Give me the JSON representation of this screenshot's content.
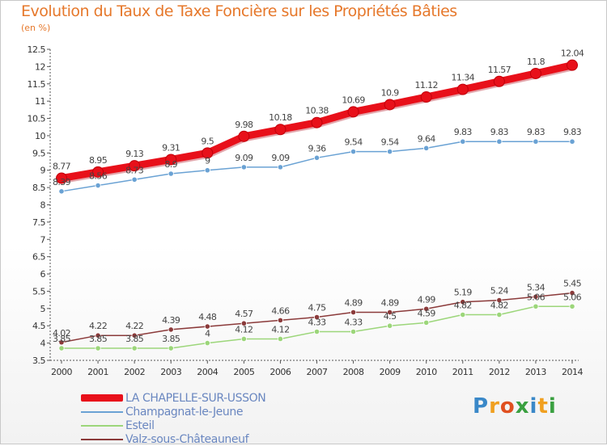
{
  "title": "Evolution du Taux de Taxe Foncière sur les Propriétés Bâties",
  "unit": "(en %)",
  "logo_text": "Proxiti",
  "chart_data": {
    "type": "line",
    "title": "Evolution du Taux de Taxe Foncière sur les Propriétés Bâties",
    "ylabel": "(en %)",
    "ylim": [
      3.5,
      12.5
    ],
    "yticks": [
      "3.5",
      "4",
      "4.5",
      "5",
      "5.5",
      "6",
      "6.5",
      "7",
      "7.5",
      "8",
      "8.5",
      "9",
      "9.5",
      "10",
      "10.5",
      "11",
      "11.5",
      "12",
      "12.5"
    ],
    "categories": [
      "2000",
      "2001",
      "2002",
      "2003",
      "2004",
      "2005",
      "2006",
      "2007",
      "2008",
      "2009",
      "2010",
      "2011",
      "2012",
      "2013",
      "2014"
    ],
    "grid": false,
    "legend_position": "bottom-left",
    "series": [
      {
        "name": "LA CHAPELLE-SUR-USSON",
        "color": "#e8101a",
        "width": 9,
        "values": [
          8.77,
          8.95,
          9.13,
          9.31,
          9.5,
          9.98,
          10.18,
          10.38,
          10.69,
          10.9,
          11.12,
          11.34,
          11.57,
          11.8,
          12.04
        ],
        "labels": [
          "8.77",
          "8.95",
          "9.13",
          "9.31",
          "9.5",
          "9.98",
          "10.18",
          "10.38",
          "10.69",
          "10.9",
          "11.12",
          "11.34",
          "11.57",
          "11.8",
          "12.04"
        ]
      },
      {
        "name": "Champagnat-le-Jeune",
        "color": "#6aa2d4",
        "width": 1.5,
        "values": [
          8.39,
          8.56,
          8.73,
          8.9,
          9.0,
          9.09,
          9.09,
          9.36,
          9.54,
          9.54,
          9.64,
          9.83,
          9.83,
          9.83,
          9.83
        ],
        "labels": [
          "8.39",
          "8.56",
          "8.73",
          "8.9",
          "9",
          "9.09",
          "9.09",
          "9.36",
          "9.54",
          "9.54",
          "9.64",
          "9.83",
          "9.83",
          "9.83",
          "9.83"
        ]
      },
      {
        "name": "Esteil",
        "color": "#9cd67a",
        "width": 1.5,
        "values": [
          3.85,
          3.85,
          3.85,
          3.85,
          4.0,
          4.12,
          4.12,
          4.33,
          4.33,
          4.5,
          4.59,
          4.82,
          4.82,
          5.06,
          5.06
        ],
        "labels": [
          "3.85",
          "3.85",
          "3.85",
          "3.85",
          "4",
          "4.12",
          "4.12",
          "4.33",
          "4.33",
          "4.5",
          "4.59",
          "4.82",
          "4.82",
          "5.06",
          "5.06"
        ]
      },
      {
        "name": "Valz-sous-Châteauneuf",
        "color": "#8b3a3a",
        "width": 1.5,
        "values": [
          4.02,
          4.22,
          4.22,
          4.39,
          4.48,
          4.57,
          4.66,
          4.75,
          4.89,
          4.89,
          4.99,
          5.19,
          5.24,
          5.34,
          5.45
        ],
        "labels": [
          "4.02",
          "4.22",
          "4.22",
          "4.39",
          "4.48",
          "4.57",
          "4.66",
          "4.75",
          "4.89",
          "4.89",
          "4.99",
          "5.19",
          "5.24",
          "5.34",
          "5.45"
        ]
      }
    ]
  }
}
